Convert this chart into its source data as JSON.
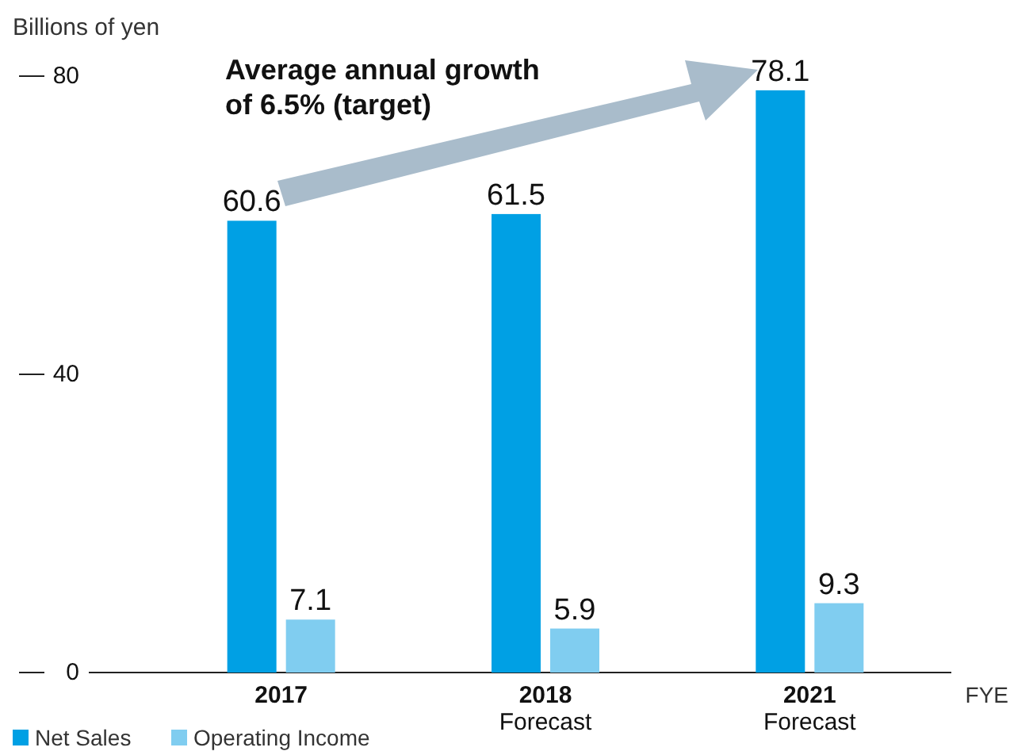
{
  "chart_data": {
    "type": "bar",
    "ylabel": "Billions of yen",
    "xlabel": "FYE",
    "categories": [
      "2017",
      "2018\nForecast",
      "2021\nForecast"
    ],
    "series": [
      {
        "name": "Net Sales",
        "color": "#00a0e4",
        "values": [
          60.6,
          61.5,
          78.1
        ]
      },
      {
        "name": "Operating Income",
        "color": "#80cdf0",
        "values": [
          7.1,
          5.9,
          9.3
        ]
      }
    ],
    "ylim": [
      0,
      80
    ],
    "yticks": [
      0,
      40,
      80
    ],
    "grid": false,
    "data_labels": true,
    "legend": "bottom left",
    "annotations": [
      "Average annual growth\nof 6.5% (target)"
    ]
  }
}
